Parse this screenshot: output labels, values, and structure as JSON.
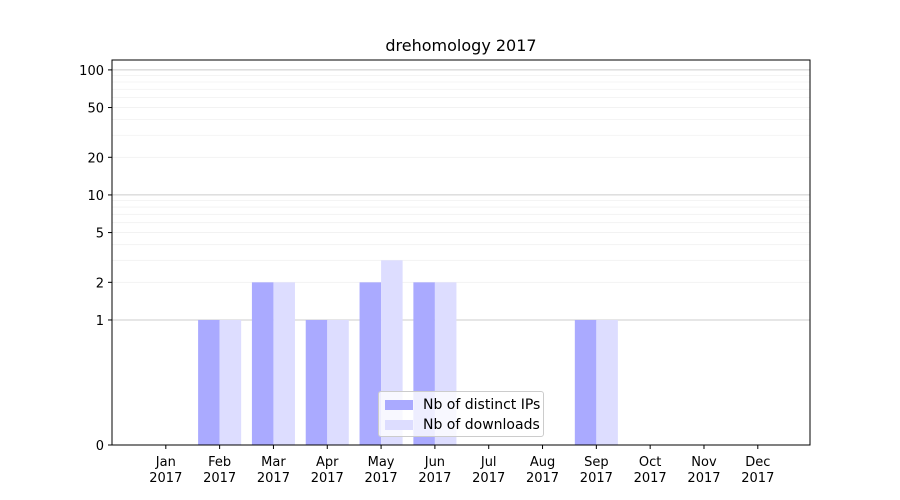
{
  "chart_data": {
    "type": "bar",
    "title": "drehomology 2017",
    "categories": [
      "Jan\n2017",
      "Feb\n2017",
      "Mar\n2017",
      "Apr\n2017",
      "May\n2017",
      "Jun\n2017",
      "Jul\n2017",
      "Aug\n2017",
      "Sep\n2017",
      "Oct\n2017",
      "Nov\n2017",
      "Dec\n2017"
    ],
    "series": [
      {
        "name": "Nb of distinct IPs",
        "values": [
          0,
          1,
          2,
          1,
          2,
          2,
          0,
          0,
          1,
          0,
          0,
          0
        ],
        "color": "#aaaaff"
      },
      {
        "name": "Nb of downloads",
        "values": [
          0,
          1,
          2,
          1,
          3,
          2,
          0,
          0,
          1,
          0,
          0,
          0
        ],
        "color": "#ddddff"
      }
    ],
    "y_scale": "symlog",
    "y_ticks": [
      0,
      1,
      2,
      5,
      10,
      20,
      50,
      100
    ],
    "ylim": [
      0,
      120
    ],
    "xlabel": "",
    "ylabel": "",
    "grid": "horizontal",
    "legend_position": "bottom-center"
  }
}
